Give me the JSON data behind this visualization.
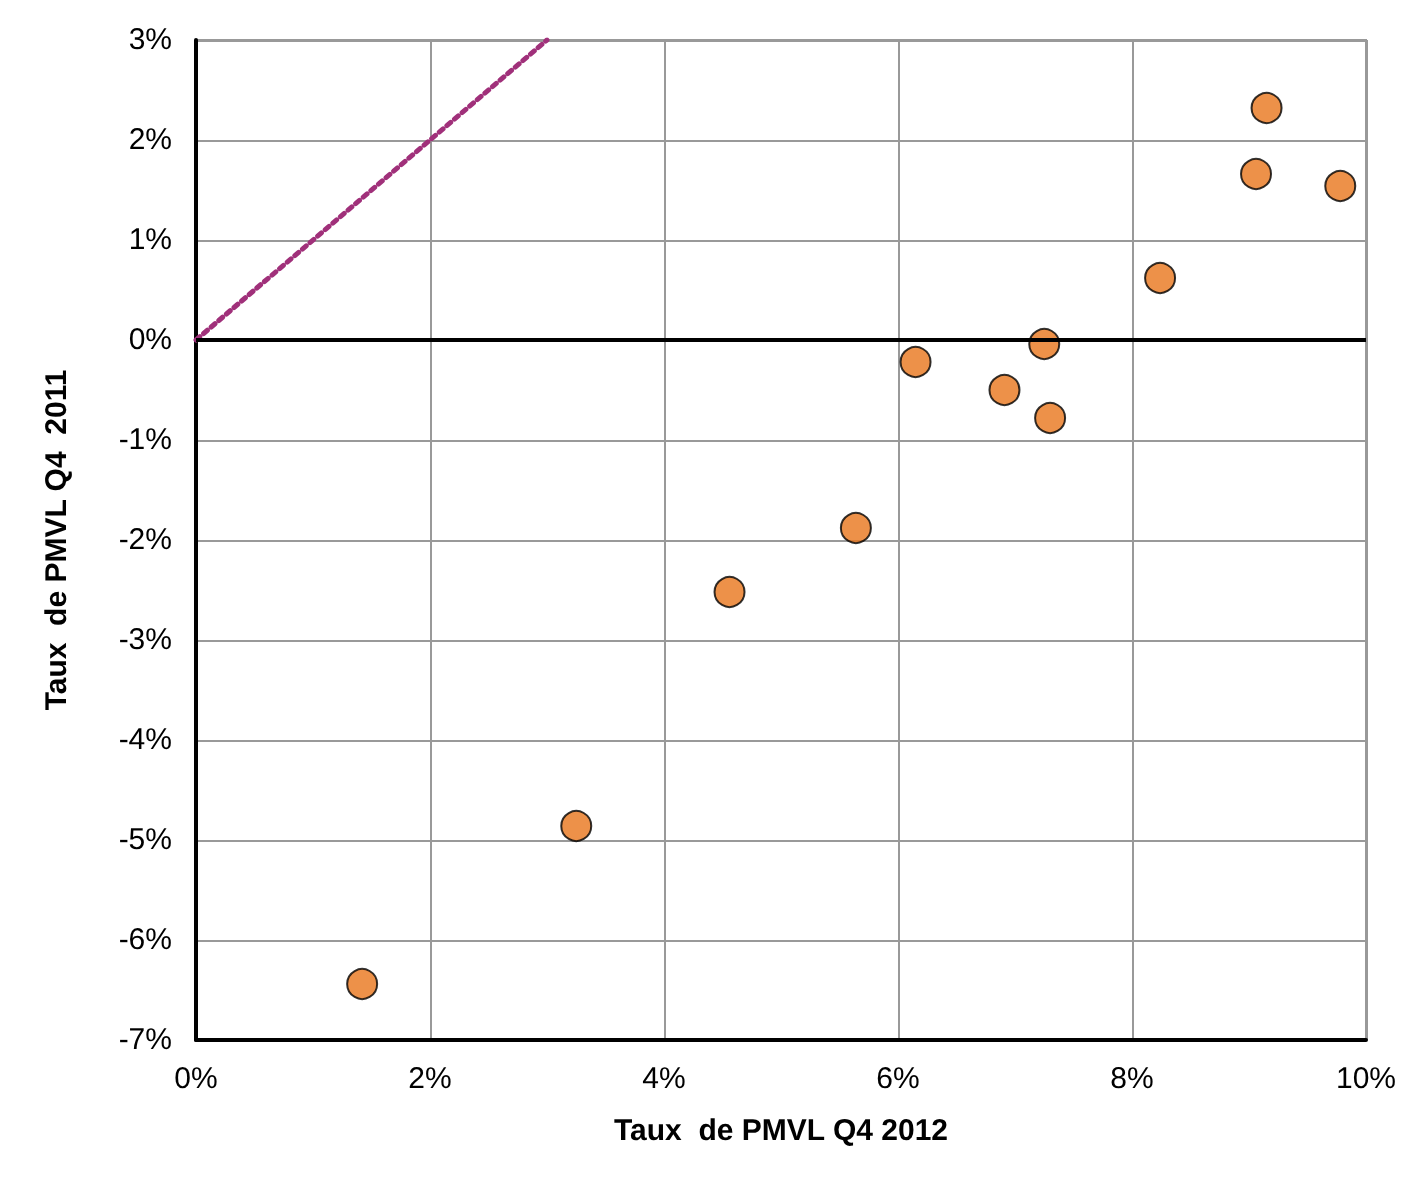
{
  "chart_data": {
    "type": "scatter",
    "xlabel": "Taux  de PMVL Q4 2012",
    "ylabel": "Taux  de PMVL Q4  2011",
    "x": [
      1.42,
      3.25,
      4.56,
      5.64,
      6.15,
      6.91,
      7.25,
      7.3,
      8.24,
      9.06,
      9.15,
      9.78
    ],
    "series": [
      {
        "color": "#e8761c",
        "marker": "circle",
        "values": [
          -6.44,
          -4.86,
          -2.52,
          -1.88,
          -0.22,
          -0.5,
          -0.04,
          -0.78,
          0.62,
          1.66,
          2.32,
          1.54
        ]
      },
      {
        "type": "line",
        "color": "#a0307a",
        "line_style": "dotted",
        "marker": "none",
        "x": [
          0,
          3
        ],
        "values": [
          0,
          3
        ]
      }
    ],
    "xlim": [
      0,
      10
    ],
    "xticks": [
      {
        "value": 0,
        "label": "0%"
      },
      {
        "value": 2,
        "label": "2%"
      },
      {
        "value": 4,
        "label": "4%"
      },
      {
        "value": 6,
        "label": "6%"
      },
      {
        "value": 8,
        "label": "8%"
      },
      {
        "value": 10,
        "label": "10%"
      }
    ],
    "ylim": [
      -7,
      3
    ],
    "yticks": [
      {
        "value": -7,
        "label": "-7%"
      },
      {
        "value": -6,
        "label": "-6%"
      },
      {
        "value": -5,
        "label": "-5%"
      },
      {
        "value": -4,
        "label": "-4%"
      },
      {
        "value": -3,
        "label": "-3%"
      },
      {
        "value": -2,
        "label": "-2%"
      },
      {
        "value": -1,
        "label": "-1%"
      },
      {
        "value": 0,
        "label": "0%"
      },
      {
        "value": 1,
        "label": "1%"
      },
      {
        "value": 2,
        "label": "2%"
      },
      {
        "value": 3,
        "label": "3%"
      }
    ],
    "ref_lines": [
      {
        "axis": "y",
        "value": 0,
        "color": "#000000",
        "line_style": "solid"
      }
    ],
    "grid": true
  }
}
